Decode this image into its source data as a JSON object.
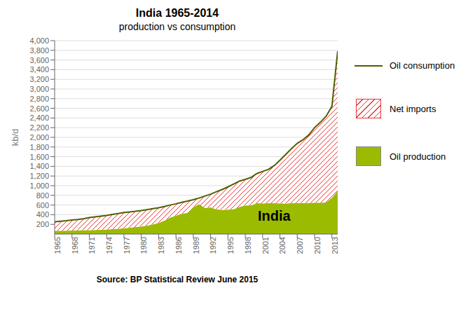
{
  "chart_data": {
    "type": "area",
    "title": "India 1965-2014",
    "subtitle": "production vs consumption",
    "y_label": "kb/d",
    "source": "Source: BP Statistical Review  June 2015",
    "annotations": [
      {
        "text": "India",
        "x": 2003,
        "y": 380
      }
    ],
    "x": [
      1965,
      1966,
      1967,
      1968,
      1969,
      1970,
      1971,
      1972,
      1973,
      1974,
      1975,
      1976,
      1977,
      1978,
      1979,
      1980,
      1981,
      1982,
      1983,
      1984,
      1985,
      1986,
      1987,
      1988,
      1989,
      1990,
      1991,
      1992,
      1993,
      1994,
      1995,
      1996,
      1997,
      1998,
      1999,
      2000,
      2001,
      2002,
      2003,
      2004,
      2005,
      2006,
      2007,
      2008,
      2009,
      2010,
      2011,
      2012,
      2013,
      2014
    ],
    "series": [
      {
        "name": "Oil consumption",
        "type": "line",
        "color": "#4E6000",
        "values": [
          255,
          265,
          275,
          290,
          300,
          315,
          340,
          355,
          370,
          385,
          405,
          425,
          445,
          458,
          470,
          485,
          505,
          525,
          545,
          570,
          600,
          625,
          655,
          680,
          710,
          745,
          785,
          825,
          875,
          920,
          975,
          1035,
          1095,
          1130,
          1170,
          1250,
          1295,
          1335,
          1415,
          1525,
          1645,
          1765,
          1875,
          1950,
          2050,
          2200,
          2310,
          2435,
          2640,
          3785
        ]
      },
      {
        "name": "Net imports",
        "type": "area",
        "color": "#EE3333",
        "values": [
          188,
          197,
          205,
          218,
          225,
          237,
          260,
          272,
          282,
          292,
          305,
          315,
          325,
          328,
          325,
          329,
          330,
          325,
          315,
          290,
          260,
          245,
          235,
          240,
          160,
          125,
          245,
          275,
          365,
          420,
          470,
          520,
          535,
          540,
          575,
          612,
          661,
          698,
          779,
          891,
          1013,
          1127,
          1235,
          1307,
          1405,
          1550,
          1662,
          1782,
          1890,
          2895
        ]
      },
      {
        "name": "Oil production",
        "type": "area",
        "color": "#9BBB00",
        "values": [
          67,
          68,
          70,
          72,
          75,
          78,
          80,
          83,
          88,
          93,
          100,
          110,
          120,
          130,
          145,
          156,
          175,
          200,
          230,
          280,
          340,
          380,
          420,
          440,
          550,
          620,
          540,
          550,
          510,
          500,
          505,
          515,
          560,
          590,
          595,
          638,
          634,
          637,
          636,
          634,
          632,
          638,
          640,
          643,
          645,
          650,
          648,
          653,
          750,
          890
        ]
      }
    ],
    "stacked": true,
    "xlim": [
      1965,
      2014
    ],
    "xticks": [
      1965,
      1968,
      1971,
      1974,
      1977,
      1980,
      1983,
      1986,
      1989,
      1992,
      1995,
      1998,
      2001,
      2004,
      2007,
      2010,
      2013
    ],
    "ylim": [
      0,
      4000
    ],
    "yticks": [
      200,
      400,
      600,
      800,
      {
        "value": 1000,
        "label": "1,000"
      },
      {
        "value": 1200,
        "label": "1,200"
      },
      {
        "value": 1400,
        "label": "1,400"
      },
      {
        "value": 1600,
        "label": "1,600"
      },
      {
        "value": 1800,
        "label": "1,800"
      },
      {
        "value": 2000,
        "label": "2,000"
      },
      {
        "value": 2200,
        "label": "2,200"
      },
      {
        "value": 2400,
        "label": "2,400"
      },
      {
        "value": 2600,
        "label": "2,600"
      },
      {
        "value": 2800,
        "label": "2,800"
      },
      {
        "value": 3000,
        "label": "3,000"
      },
      {
        "value": 3200,
        "label": "3,200"
      },
      {
        "value": 3400,
        "label": "3,400"
      },
      {
        "value": 3600,
        "label": "3,600"
      },
      {
        "value": 3800,
        "label": "3,800"
      },
      {
        "value": 4000,
        "label": "4,000"
      }
    ],
    "grid": "y",
    "legend": "right"
  }
}
